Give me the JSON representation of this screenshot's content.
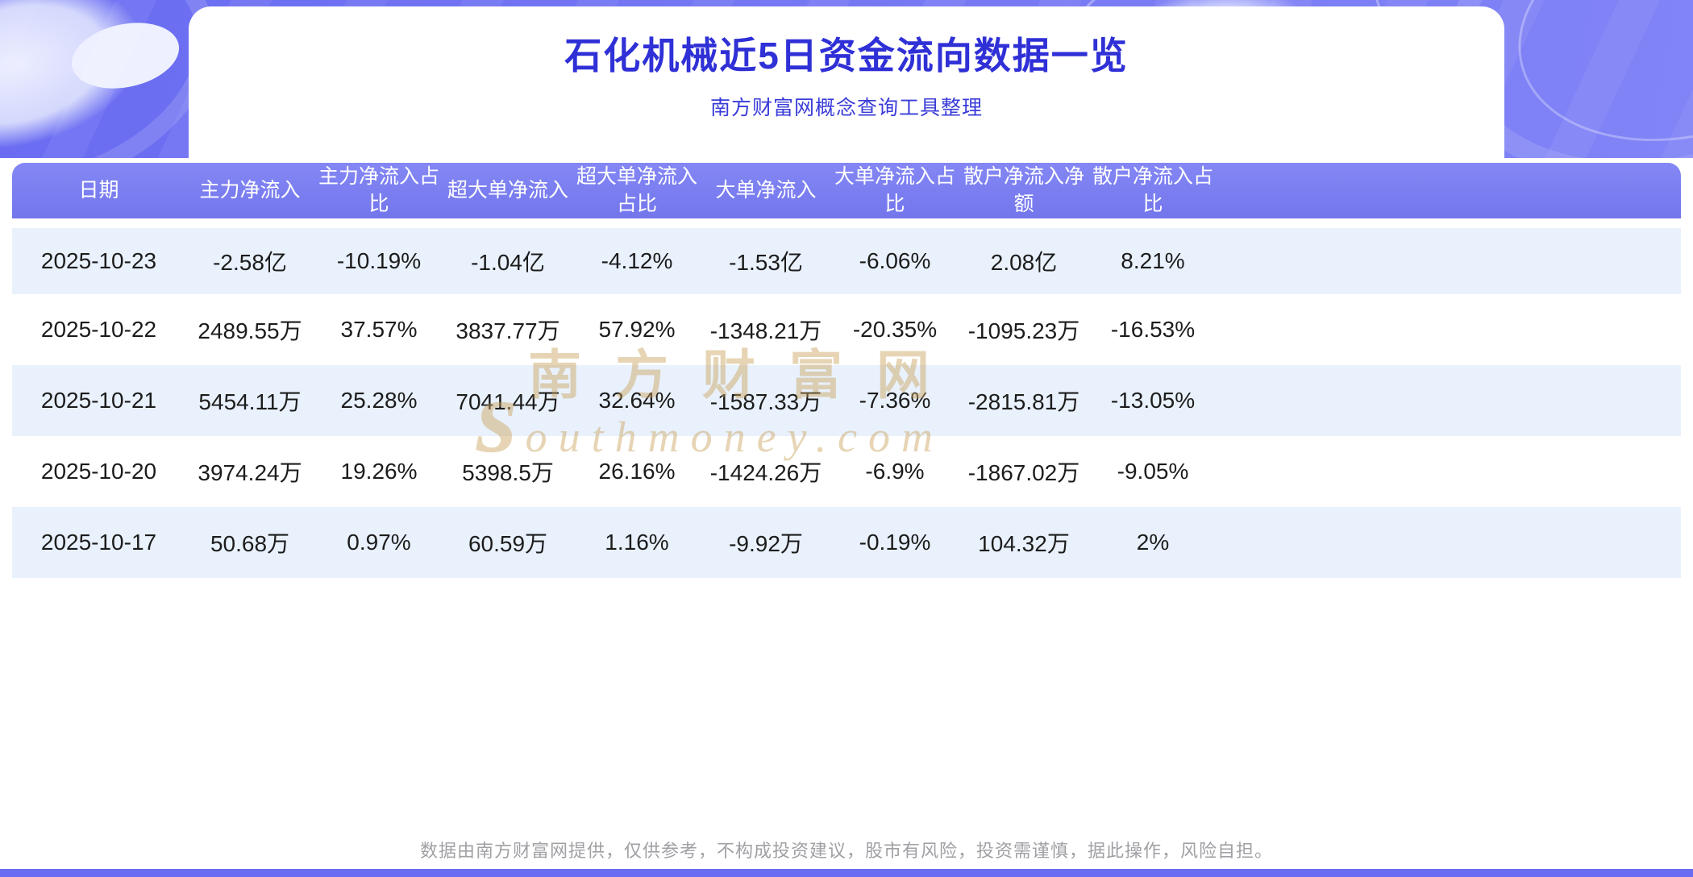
{
  "header": {
    "title": "石化机械近5日资金流向数据一览",
    "subtitle": "南方财富网概念查询工具整理"
  },
  "chart_data": {
    "type": "table",
    "title": "石化机械近5日资金流向数据一览",
    "columns": [
      "日期",
      "主力净流入",
      "主力净流入占比",
      "超大单净流入",
      "超大单净流入占比",
      "大单净流入",
      "大单净流入占比",
      "散户净流入净额",
      "散户净流入占比"
    ],
    "rows": [
      [
        "2025-10-23",
        "-2.58亿",
        "-10.19%",
        "-1.04亿",
        "-4.12%",
        "-1.53亿",
        "-6.06%",
        "2.08亿",
        "8.21%"
      ],
      [
        "2025-10-22",
        "2489.55万",
        "37.57%",
        "3837.77万",
        "57.92%",
        "-1348.21万",
        "-20.35%",
        "-1095.23万",
        "-16.53%"
      ],
      [
        "2025-10-21",
        "5454.11万",
        "25.28%",
        "7041.44万",
        "32.64%",
        "-1587.33万",
        "-7.36%",
        "-2815.81万",
        "-13.05%"
      ],
      [
        "2025-10-20",
        "3974.24万",
        "19.26%",
        "5398.5万",
        "26.16%",
        "-1424.26万",
        "-6.9%",
        "-1867.02万",
        "-9.05%"
      ],
      [
        "2025-10-17",
        "50.68万",
        "0.97%",
        "60.59万",
        "1.16%",
        "-9.92万",
        "-0.19%",
        "104.32万",
        "2%"
      ]
    ]
  },
  "watermark": {
    "line1": "南方财富网",
    "logo_letter": "s",
    "line2": "outhmoney.com"
  },
  "footer": {
    "disclaimer": "数据由南方财富网提供，仅供参考，不构成投资建议，股市有风险，投资需谨慎，据此操作，风险自担。"
  },
  "colors": {
    "hero_bg_start": "#6a6cf2",
    "hero_bg_end": "#8184f6",
    "title_blue": "#2f30d6",
    "subtitle_blue": "#3a3cd8",
    "table_header_bg": "#7376ec",
    "row_alt_bg": "#e9f1fc",
    "watermark_gold": "#c9a25a",
    "footer_gray": "#a0a0a5"
  }
}
